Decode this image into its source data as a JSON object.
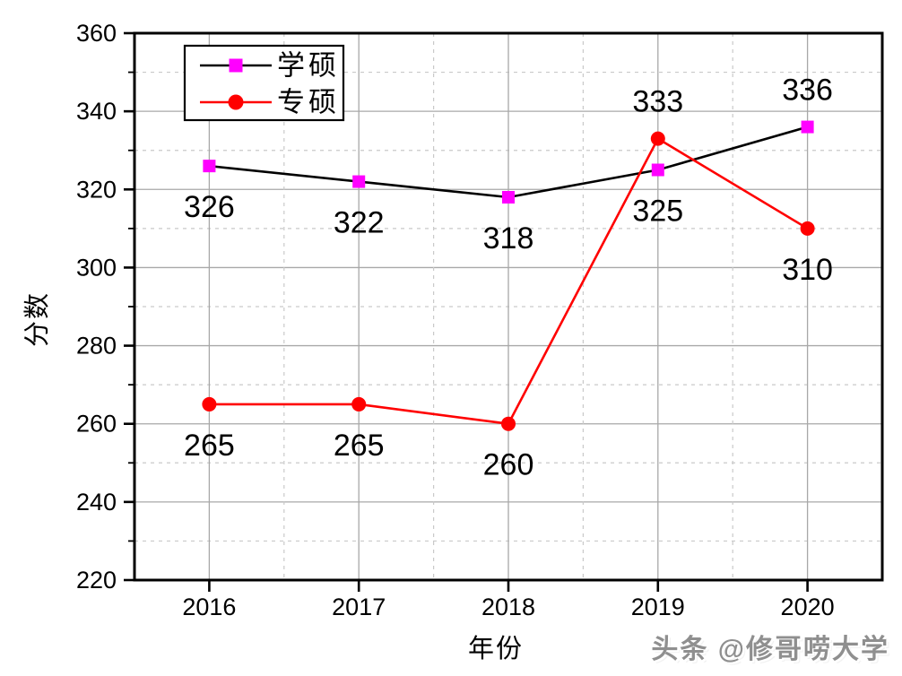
{
  "watermark": "头条 @修哥唠大学",
  "chart_data": {
    "type": "line",
    "title": "",
    "xlabel": "年份",
    "ylabel": "分数",
    "categories": [
      "2016",
      "2017",
      "2018",
      "2019",
      "2020"
    ],
    "y_ticks": [
      "220",
      "240",
      "260",
      "280",
      "300",
      "320",
      "340",
      "360"
    ],
    "ylim": [
      220,
      360
    ],
    "y_major_step": 20,
    "y_minor_step": 10,
    "grid": "major-solid-gray, minor-dashed-gray",
    "legend_position": "top-left",
    "series": [
      {
        "name": "学硕",
        "line_color": "#000000",
        "marker": "square",
        "marker_color": "#ff00ff",
        "values": [
          326,
          322,
          318,
          325,
          336
        ],
        "label_placement": [
          "below",
          "below",
          "below",
          "below",
          "above"
        ]
      },
      {
        "name": "专硕",
        "line_color": "#ff0000",
        "marker": "circle",
        "marker_color": "#ff0000",
        "values": [
          265,
          265,
          260,
          333,
          310
        ],
        "label_placement": [
          "below",
          "below",
          "below",
          "above",
          "below"
        ]
      }
    ]
  }
}
